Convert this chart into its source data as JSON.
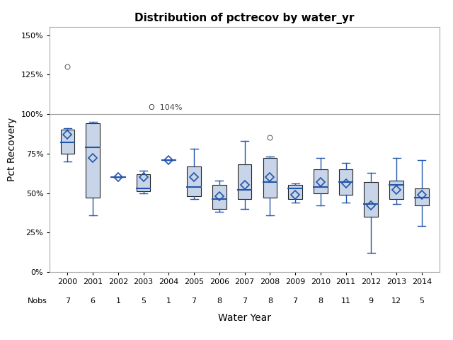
{
  "title": "Distribution of pctrecov by water_yr",
  "xlabel": "Water Year",
  "ylabel": "Pct Recovery",
  "years": [
    2000,
    2001,
    2002,
    2003,
    2004,
    2005,
    2006,
    2007,
    2008,
    2009,
    2010,
    2011,
    2012,
    2013,
    2014
  ],
  "nobs": [
    7,
    6,
    1,
    5,
    1,
    7,
    8,
    7,
    8,
    7,
    8,
    11,
    9,
    12,
    5
  ],
  "box_data": {
    "2000": {
      "whislo": 0.7,
      "q1": 0.75,
      "med": 0.82,
      "q3": 0.9,
      "whishi": 0.91,
      "mean": 0.87,
      "fliers": [
        1.3
      ]
    },
    "2001": {
      "whislo": 0.36,
      "q1": 0.47,
      "med": 0.79,
      "q3": 0.94,
      "whishi": 0.95,
      "mean": 0.72,
      "fliers": []
    },
    "2002": {
      "whislo": 0.6,
      "q1": 0.6,
      "med": 0.6,
      "q3": 0.6,
      "whishi": 0.6,
      "mean": 0.6,
      "fliers": []
    },
    "2003": {
      "whislo": 0.5,
      "q1": 0.51,
      "med": 0.53,
      "q3": 0.62,
      "whishi": 0.64,
      "mean": 0.6,
      "fliers": []
    },
    "2004": {
      "whislo": 0.71,
      "q1": 0.71,
      "med": 0.71,
      "q3": 0.71,
      "whishi": 0.71,
      "mean": 0.71,
      "fliers": []
    },
    "2005": {
      "whislo": 0.46,
      "q1": 0.48,
      "med": 0.54,
      "q3": 0.67,
      "whishi": 0.78,
      "mean": 0.6,
      "fliers": []
    },
    "2006": {
      "whislo": 0.38,
      "q1": 0.4,
      "med": 0.46,
      "q3": 0.55,
      "whishi": 0.58,
      "mean": 0.48,
      "fliers": []
    },
    "2007": {
      "whislo": 0.4,
      "q1": 0.46,
      "med": 0.52,
      "q3": 0.68,
      "whishi": 0.83,
      "mean": 0.55,
      "fliers": []
    },
    "2008": {
      "whislo": 0.36,
      "q1": 0.47,
      "med": 0.57,
      "q3": 0.72,
      "whishi": 0.73,
      "mean": 0.6,
      "fliers": [
        0.85
      ]
    },
    "2009": {
      "whislo": 0.44,
      "q1": 0.46,
      "med": 0.53,
      "q3": 0.55,
      "whishi": 0.56,
      "mean": 0.49,
      "fliers": []
    },
    "2010": {
      "whislo": 0.42,
      "q1": 0.5,
      "med": 0.54,
      "q3": 0.65,
      "whishi": 0.72,
      "mean": 0.57,
      "fliers": []
    },
    "2011": {
      "whislo": 0.44,
      "q1": 0.49,
      "med": 0.57,
      "q3": 0.65,
      "whishi": 0.69,
      "mean": 0.56,
      "fliers": []
    },
    "2012": {
      "whislo": 0.12,
      "q1": 0.35,
      "med": 0.43,
      "q3": 0.57,
      "whishi": 0.63,
      "mean": 0.42,
      "fliers": []
    },
    "2013": {
      "whislo": 0.43,
      "q1": 0.46,
      "med": 0.55,
      "q3": 0.58,
      "whishi": 0.72,
      "mean": 0.52,
      "fliers": []
    },
    "2014": {
      "whislo": 0.29,
      "q1": 0.42,
      "med": 0.47,
      "q3": 0.53,
      "whishi": 0.71,
      "mean": 0.49,
      "fliers": []
    }
  },
  "box_color": "#c8d4e8",
  "box_edge_color": "#222222",
  "whisker_color": "#2255aa",
  "median_color": "#2255aa",
  "mean_color": "#2255aa",
  "flier_color": "#666666",
  "ref_line_y": 1.0,
  "ref_line_color": "#999999",
  "ylim": [
    0.0,
    1.55
  ],
  "yticks": [
    0.0,
    0.25,
    0.5,
    0.75,
    1.0,
    1.25,
    1.5
  ],
  "ytick_labels": [
    "0%",
    "25%",
    "50%",
    "75%",
    "100%",
    "125%",
    "150%"
  ],
  "background_color": "#ffffff"
}
